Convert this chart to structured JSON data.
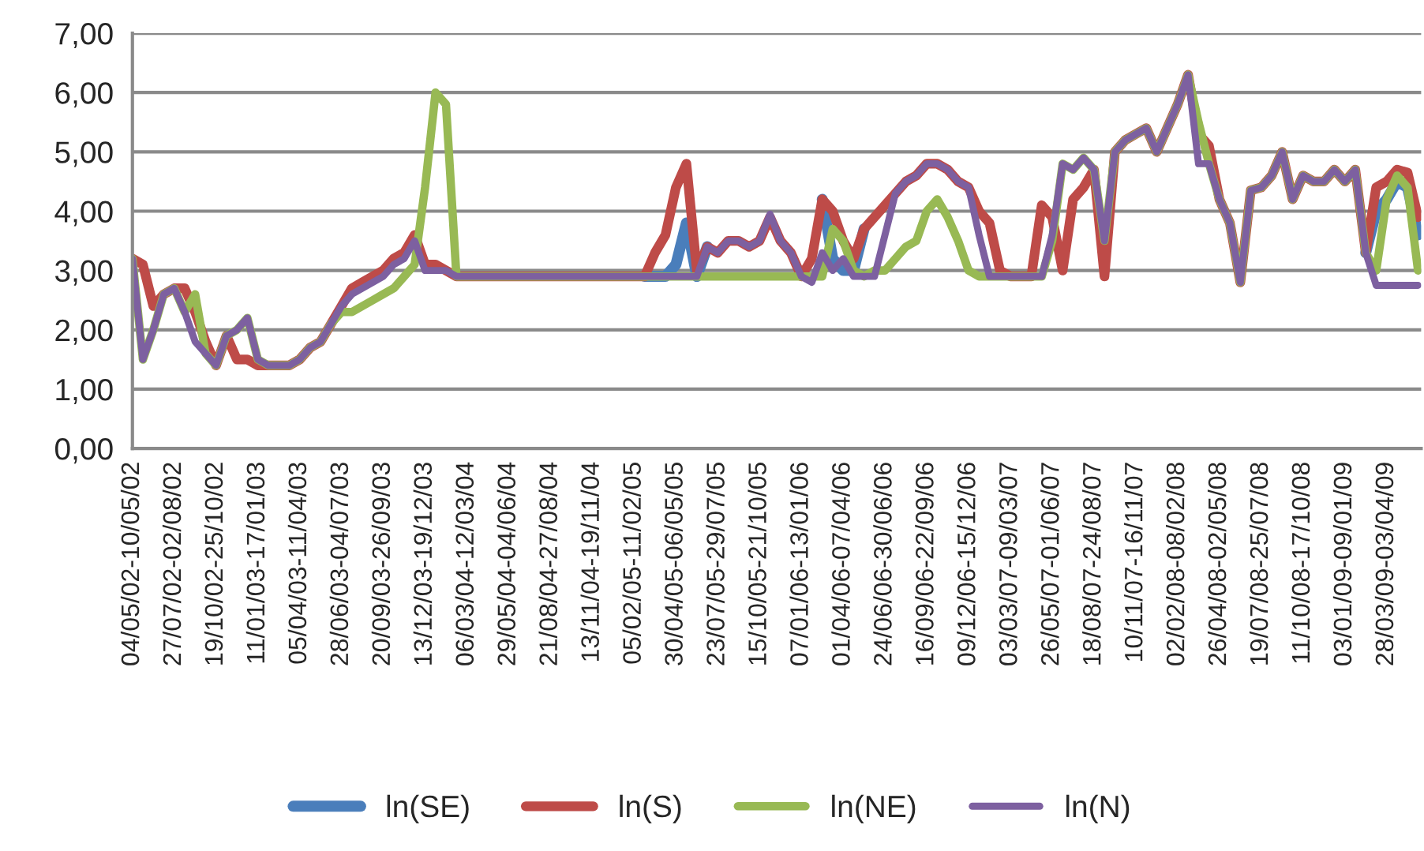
{
  "chart_data": {
    "type": "line",
    "categories": [
      "04/05/02-10/05/02",
      null,
      null,
      null,
      "27/07/02-02/08/02",
      null,
      null,
      null,
      "19/10/02-25/10/02",
      null,
      null,
      null,
      "11/01/03-17/01/03",
      null,
      null,
      null,
      "05/04/03-11/04/03",
      null,
      null,
      null,
      "28/06/03-04/07/03",
      null,
      null,
      null,
      "20/09/03-26/09/03",
      null,
      null,
      null,
      "13/12/03-19/12/03",
      null,
      null,
      null,
      "06/03/04-12/03/04",
      null,
      null,
      null,
      "29/05/04-04/06/04",
      null,
      null,
      null,
      "21/08/04-27/08/04",
      null,
      null,
      null,
      "13/11/04-19/11/04",
      null,
      null,
      null,
      "05/02/05-11/02/05",
      null,
      null,
      null,
      "30/04/05-06/05/05",
      null,
      null,
      null,
      "23/07/05-29/07/05",
      null,
      null,
      null,
      "15/10/05-21/10/05",
      null,
      null,
      null,
      "07/01/06-13/01/06",
      null,
      null,
      null,
      "01/04/06-07/04/06",
      null,
      null,
      null,
      "24/06/06-30/06/06",
      null,
      null,
      null,
      "16/09/06-22/09/06",
      null,
      null,
      null,
      "09/12/06-15/12/06",
      null,
      null,
      null,
      "03/03/07-09/03/07",
      null,
      null,
      null,
      "26/05/07-01/06/07",
      null,
      null,
      null,
      "18/08/07-24/08/07",
      null,
      null,
      null,
      "10/11/07-16/11/07",
      null,
      null,
      null,
      "02/02/08-08/02/08",
      null,
      null,
      null,
      "26/04/08-02/05/08",
      null,
      null,
      null,
      "19/07/08-25/07/08",
      null,
      null,
      null,
      "11/10/08-17/10/08",
      null,
      null,
      null,
      "03/01/09-09/01/09",
      null,
      null,
      null,
      "28/03/09-03/04/09",
      null,
      null,
      null
    ],
    "series": [
      {
        "name": "ln(SE)",
        "color": "#4a7ebb",
        "values": [
          null,
          null,
          null,
          null,
          null,
          null,
          null,
          null,
          null,
          null,
          null,
          null,
          null,
          null,
          null,
          null,
          null,
          null,
          null,
          null,
          null,
          null,
          null,
          null,
          null,
          null,
          null,
          null,
          null,
          null,
          null,
          null,
          null,
          null,
          null,
          null,
          null,
          null,
          null,
          null,
          null,
          null,
          null,
          null,
          null,
          null,
          null,
          null,
          null,
          2.9,
          2.9,
          2.9,
          3.1,
          3.8,
          2.9,
          3.4,
          null,
          null,
          null,
          null,
          null,
          null,
          null,
          null,
          null,
          null,
          4.2,
          3.2,
          3.0,
          3.0,
          3.7,
          null,
          null,
          null,
          null,
          null,
          null,
          null,
          null,
          null,
          null,
          null,
          null,
          null,
          null,
          null,
          null,
          null,
          null,
          null,
          null,
          null,
          null,
          null,
          null,
          null,
          null,
          null,
          null,
          null,
          null,
          null,
          null,
          null,
          null,
          null,
          null,
          null,
          null,
          null,
          null,
          null,
          null,
          null,
          null,
          null,
          null,
          null,
          3.3,
          4.0,
          4.2,
          4.5,
          4.4,
          3.6
        ]
      },
      {
        "name": "ln(S)",
        "color": "#be4b48",
        "values": [
          3.2,
          3.1,
          2.4,
          2.6,
          2.7,
          2.7,
          2.3,
          1.8,
          1.4,
          1.9,
          1.5,
          1.5,
          1.4,
          1.4,
          1.4,
          1.4,
          1.5,
          1.7,
          1.8,
          2.1,
          2.4,
          2.7,
          2.8,
          2.9,
          3.0,
          3.2,
          3.3,
          3.6,
          3.1,
          3.1,
          3.0,
          2.9,
          2.9,
          2.9,
          2.9,
          2.9,
          2.9,
          2.9,
          2.9,
          2.9,
          2.9,
          2.9,
          2.9,
          2.9,
          2.9,
          2.9,
          2.9,
          2.9,
          2.9,
          2.9,
          3.3,
          3.6,
          4.4,
          4.8,
          3.0,
          3.4,
          3.3,
          3.5,
          3.5,
          3.4,
          3.5,
          3.9,
          3.5,
          3.3,
          2.9,
          3.2,
          4.2,
          4.0,
          3.5,
          3.2,
          3.7,
          3.9,
          4.1,
          4.3,
          4.5,
          4.6,
          4.8,
          4.8,
          4.7,
          4.5,
          4.4,
          4.0,
          3.8,
          3.0,
          2.9,
          2.9,
          2.9,
          4.1,
          3.9,
          3.0,
          4.2,
          4.4,
          4.7,
          2.9,
          5.0,
          5.2,
          5.3,
          5.4,
          5.0,
          5.4,
          5.8,
          6.3,
          5.3,
          5.1,
          4.2,
          3.8,
          2.8,
          4.35,
          4.4,
          4.6,
          5.0,
          4.2,
          4.6,
          4.5,
          4.5,
          4.7,
          4.5,
          4.7,
          3.3,
          4.4,
          4.5,
          4.7,
          4.65,
          3.9
        ]
      },
      {
        "name": "ln(NE)",
        "color": "#98b954",
        "values": [
          3.2,
          1.5,
          2.0,
          2.6,
          2.7,
          2.3,
          2.6,
          1.6,
          1.4,
          1.9,
          2.0,
          2.2,
          1.5,
          1.4,
          1.4,
          1.4,
          1.5,
          1.7,
          1.8,
          2.1,
          2.3,
          2.3,
          2.4,
          2.5,
          2.6,
          2.7,
          2.9,
          3.1,
          4.4,
          6.0,
          5.8,
          2.9,
          2.9,
          2.9,
          2.9,
          2.9,
          2.9,
          2.9,
          2.9,
          2.9,
          2.9,
          2.9,
          2.9,
          2.9,
          2.9,
          2.9,
          2.9,
          2.9,
          2.9,
          2.9,
          2.9,
          2.9,
          2.9,
          2.9,
          2.9,
          2.9,
          2.9,
          2.9,
          2.9,
          2.9,
          2.9,
          2.9,
          2.9,
          2.9,
          2.9,
          2.9,
          2.9,
          3.7,
          3.5,
          3.0,
          2.9,
          3.0,
          3.0,
          3.2,
          3.4,
          3.5,
          4.0,
          4.2,
          3.9,
          3.5,
          3.0,
          2.9,
          2.9,
          2.9,
          2.9,
          2.9,
          2.9,
          2.9,
          3.5,
          4.8,
          4.7,
          4.9,
          4.7,
          3.5,
          5.0,
          5.2,
          5.3,
          5.4,
          5.0,
          5.4,
          5.8,
          6.3,
          5.5,
          4.8,
          4.2,
          3.8,
          2.8,
          4.35,
          4.4,
          4.6,
          5.0,
          4.2,
          4.6,
          4.5,
          4.5,
          4.7,
          4.5,
          4.7,
          3.3,
          3.0,
          4.2,
          4.6,
          4.4,
          3.0
        ]
      },
      {
        "name": "ln(N)",
        "color": "#7d60a0",
        "values": [
          3.2,
          1.5,
          2.0,
          2.6,
          2.7,
          2.3,
          1.8,
          1.6,
          1.4,
          1.9,
          2.0,
          2.2,
          1.5,
          1.4,
          1.4,
          1.4,
          1.5,
          1.7,
          1.8,
          2.1,
          2.4,
          2.6,
          2.7,
          2.8,
          2.9,
          3.1,
          3.2,
          3.5,
          3.0,
          3.0,
          3.0,
          2.9,
          2.9,
          2.9,
          2.9,
          2.9,
          2.9,
          2.9,
          2.9,
          2.9,
          2.9,
          2.9,
          2.9,
          2.9,
          2.9,
          2.9,
          2.9,
          2.9,
          2.9,
          2.9,
          2.9,
          2.9,
          2.9,
          2.9,
          2.9,
          3.4,
          3.3,
          3.5,
          3.5,
          3.4,
          3.5,
          3.95,
          3.5,
          3.3,
          2.9,
          2.8,
          3.3,
          3.0,
          3.2,
          2.9,
          2.9,
          2.9,
          3.6,
          4.3,
          4.5,
          4.6,
          4.8,
          4.8,
          4.7,
          4.5,
          4.4,
          3.6,
          2.9,
          2.9,
          2.9,
          2.9,
          2.9,
          2.9,
          3.6,
          4.8,
          4.7,
          4.9,
          4.7,
          3.5,
          5.0,
          5.2,
          5.3,
          5.4,
          5.0,
          5.4,
          5.8,
          6.3,
          4.8,
          4.8,
          4.2,
          3.8,
          2.8,
          4.35,
          4.4,
          4.6,
          5.0,
          4.2,
          4.6,
          4.5,
          4.5,
          4.7,
          4.5,
          4.7,
          3.3,
          2.75,
          2.75,
          2.75,
          2.75,
          2.75
        ]
      }
    ],
    "ylim": [
      0,
      7
    ],
    "yticks": [
      {
        "value": 0,
        "label": "0,00"
      },
      {
        "value": 1,
        "label": "1,00"
      },
      {
        "value": 2,
        "label": "2,00"
      },
      {
        "value": 3,
        "label": "3,00"
      },
      {
        "value": 4,
        "label": "4,00"
      },
      {
        "value": 5,
        "label": "5,00"
      },
      {
        "value": 6,
        "label": "6,00"
      },
      {
        "value": 7,
        "label": "7,00"
      }
    ],
    "grid": "y",
    "legend": "bottom",
    "line_style": "solid"
  }
}
